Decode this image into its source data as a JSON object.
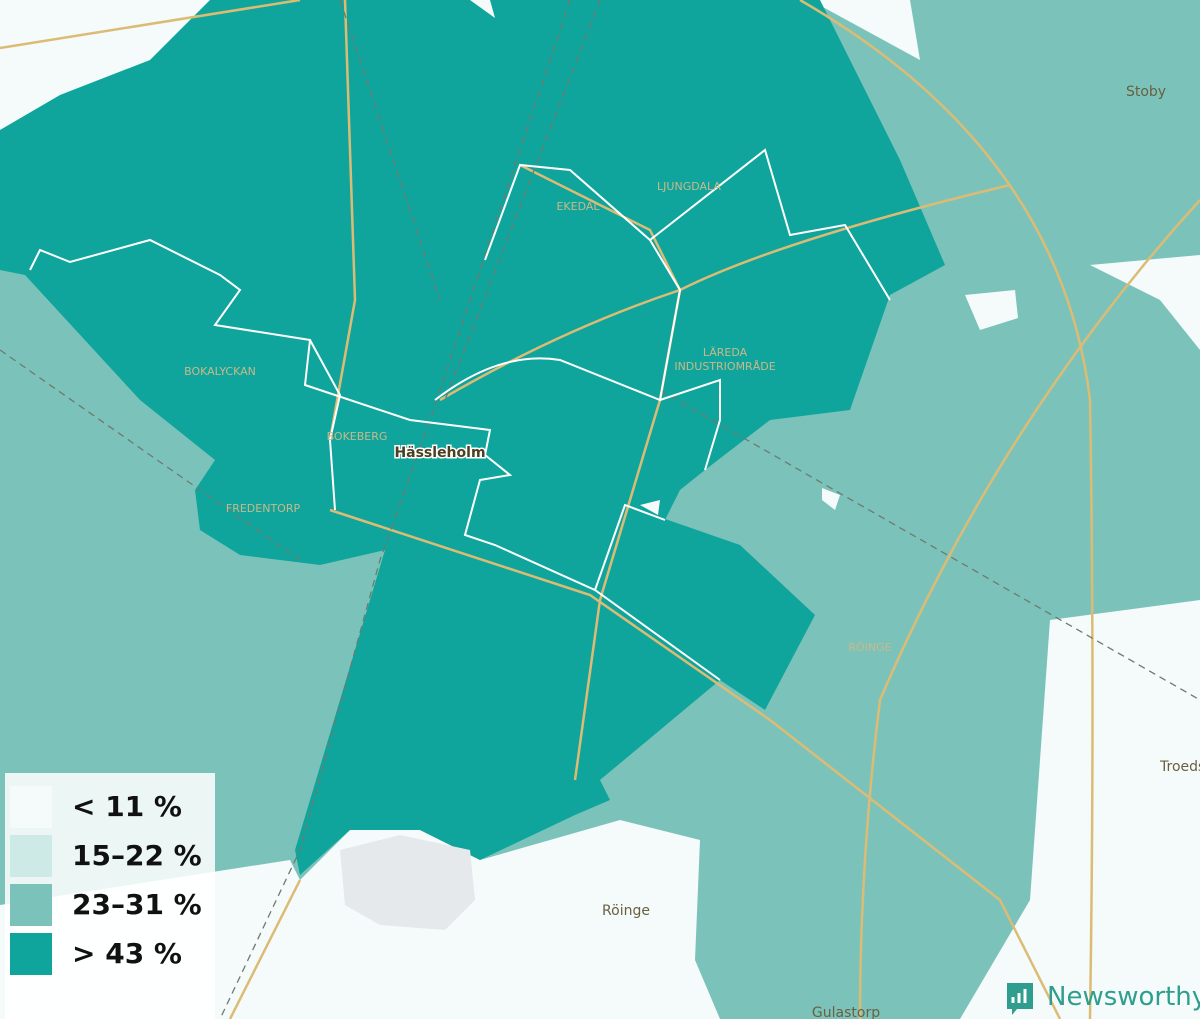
{
  "map": {
    "places": [
      "Stoby",
      "LJUNGDALA",
      "EKEDAL",
      "LÄREDA",
      "INDUSTRIOMRÅDE",
      "BOKALYCKAN",
      "BOKEBERG",
      "Hässleholm",
      "FREDENTORP",
      "RÖINGE",
      "Röinge",
      "Troeds",
      "Gulastorp"
    ]
  },
  "legend": [
    {
      "label": "< 11 %",
      "color": "#f4fbfa"
    },
    {
      "label": "15–22 %",
      "color": "#cdeae6"
    },
    {
      "label": "23–31 %",
      "color": "#7bc3ba"
    },
    {
      "label": "> 43 %",
      "color": "#0fa59c"
    }
  ],
  "brand": "Newsworthy"
}
